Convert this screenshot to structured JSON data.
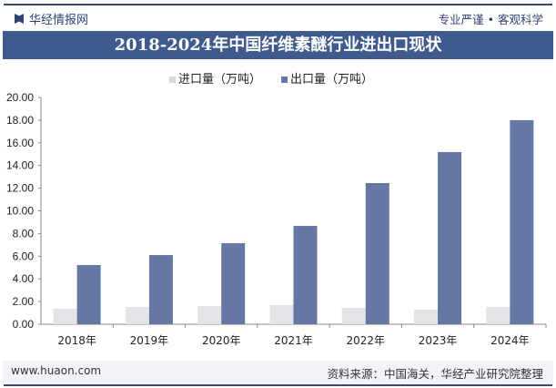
{
  "header": {
    "brand": "华经情报网",
    "slogan": "专业严谨 • 客观科学",
    "title": "2018-2024年中国纤维素醚行业进出口现状"
  },
  "footer": {
    "url": "www.huaon.com",
    "source": "资料来源：中国海关，华经产业研究院整理"
  },
  "colors": {
    "import": "#e2e4e8",
    "export": "#6578a3",
    "title_bg": "#3f5a8c"
  },
  "chart_data": {
    "type": "bar",
    "title": "2018-2024年中国纤维素醚行业进出口现状",
    "categories": [
      "2018年",
      "2019年",
      "2020年",
      "2021年",
      "2022年",
      "2023年",
      "2024年"
    ],
    "series": [
      {
        "name": "进口量（万吨）",
        "values": [
          1.37,
          1.53,
          1.6,
          1.69,
          1.45,
          1.29,
          1.53
        ]
      },
      {
        "name": "出口量（万吨）",
        "values": [
          5.22,
          6.1,
          7.15,
          8.67,
          12.45,
          15.18,
          18.0
        ]
      }
    ],
    "ylim": [
      0,
      20
    ],
    "yticks": [
      "0.00",
      "2.00",
      "4.00",
      "6.00",
      "8.00",
      "10.00",
      "12.00",
      "14.00",
      "16.00",
      "18.00",
      "20.00"
    ],
    "legend": "top",
    "grid": false
  }
}
